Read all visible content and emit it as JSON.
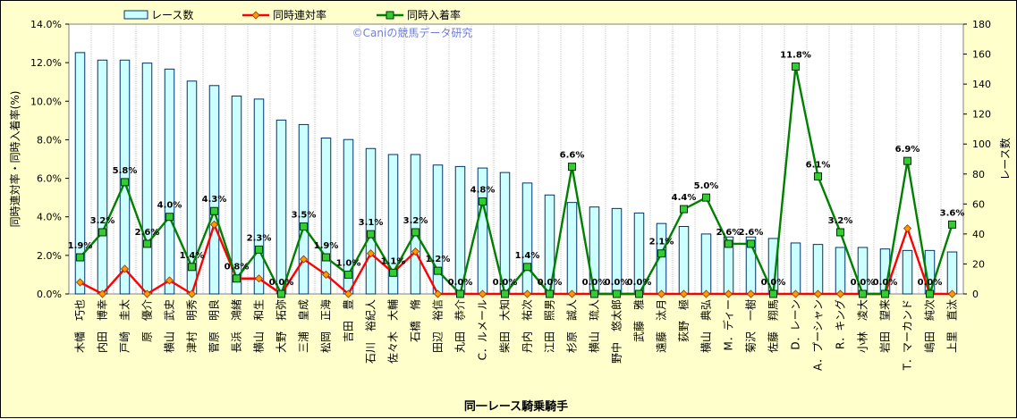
{
  "chart_data": {
    "type": "bar+line",
    "watermark": "©Caniの競馬データ研究",
    "xlabel": "同一レース騎乗騎手",
    "ylabel_left": "同時連対率・同時入着率(%)",
    "ylabel_right": "レース数",
    "ylim_left": [
      0,
      14
    ],
    "ylim_right": [
      0,
      180
    ],
    "yticks_left": [
      "0.0%",
      "2.0%",
      "4.0%",
      "6.0%",
      "8.0%",
      "10.0%",
      "12.0%",
      "14.0%"
    ],
    "yticks_right": [
      "0",
      "20",
      "40",
      "60",
      "80",
      "100",
      "120",
      "140",
      "160",
      "180"
    ],
    "legend": {
      "races": "レース数",
      "rentai": "同時連対率",
      "nyuchaku": "同時入着率"
    },
    "colors": {
      "bar_fill": "#ccffff",
      "bar_stroke": "#003366",
      "rentai": "#ff0000",
      "rentai_marker": "#ff9900",
      "nyuchaku": "#008000",
      "nyuchaku_marker": "#33cc33",
      "plot_bg": "#ffffff",
      "grid": "#9999ff",
      "page_bg": "#ffffcc"
    },
    "categories": [
      "木幡　巧也",
      "内田　博幸",
      "戸崎　圭太",
      "原　優介",
      "横山　武史",
      "津村　明秀",
      "菅原　明良",
      "長浜　鴻緒",
      "横山　和生",
      "大野　拓弥",
      "三浦　皇成",
      "松岡　正海",
      "吉田　豊",
      "石川　裕紀人",
      "佐々木　大輔",
      "石橋　脩",
      "田辺　裕信",
      "丸田　恭介",
      "C．ルメール",
      "柴田　大知",
      "丹内　祐次",
      "江田　照男",
      "杉原　誠人",
      "横山　琉人",
      "野中　悠太郎",
      "武藤　雅",
      "遠藤　汰月",
      "荻野　極",
      "横山　典弘",
      "M．ディー",
      "菊沢　一樹",
      "佐藤　翔馬",
      "D．レーン",
      "A．プーシャン",
      "R．キング",
      "小林　凌大",
      "岩田　望来",
      "T．マーカンド",
      "嶋田　純次",
      "上里　直汰"
    ],
    "series": [
      {
        "name": "レース数",
        "values": [
          161,
          156,
          156,
          154,
          150,
          142,
          139,
          132,
          130,
          116,
          113,
          104,
          103,
          97,
          93,
          93,
          86,
          85,
          84,
          81,
          74,
          66,
          61,
          58,
          57,
          54,
          47,
          45,
          40,
          38,
          38,
          37,
          34,
          33,
          31,
          31,
          30,
          29,
          29,
          28
        ]
      },
      {
        "name": "同時連対率",
        "values": [
          0.6,
          0.0,
          1.3,
          0.0,
          0.7,
          0.0,
          3.6,
          0.8,
          0.8,
          0.0,
          1.8,
          1.0,
          0.0,
          2.1,
          1.1,
          2.2,
          0.0,
          0.0,
          0.0,
          0.0,
          0.0,
          0.0,
          0.0,
          0.0,
          0.0,
          0.0,
          0.0,
          0.0,
          0.0,
          0.0,
          0.0,
          0.0,
          0.0,
          0.0,
          0.0,
          0.0,
          0.0,
          3.4,
          0.0,
          0.0
        ]
      },
      {
        "name": "同時入着率",
        "values": [
          1.9,
          3.2,
          5.8,
          2.6,
          4.0,
          1.4,
          4.3,
          0.8,
          2.3,
          0.0,
          3.5,
          1.9,
          1.0,
          3.1,
          1.1,
          3.2,
          1.2,
          0.0,
          4.8,
          0.0,
          1.4,
          0.0,
          6.6,
          0.0,
          0.0,
          0.0,
          2.1,
          4.4,
          5.0,
          2.6,
          2.6,
          0.0,
          11.8,
          6.1,
          3.2,
          0.0,
          0.0,
          6.9,
          0.0,
          3.6
        ]
      }
    ],
    "data_labels": [
      "1.9%",
      "3.2%",
      "5.8%",
      "2.6%",
      "4.0%",
      "1.4%",
      "4.3%",
      "0.8%",
      "2.3%",
      "0.0%",
      "3.5%",
      "1.9%",
      "1.0%",
      "3.1%",
      "1.1%",
      "3.2%",
      "1.2%",
      "0.0%",
      "4.8%",
      "0.0%",
      "1.4%",
      "0.0%",
      "6.6%",
      "0.0%",
      "0.0%",
      "0.0%",
      "2.1%",
      "4.4%",
      "5.0%",
      "2.6%",
      "2.6%",
      "0.0%",
      "11.8%",
      "6.1%",
      "3.2%",
      "0.0%",
      "0.0%",
      "6.9%",
      "0.0%",
      "3.6%"
    ]
  }
}
